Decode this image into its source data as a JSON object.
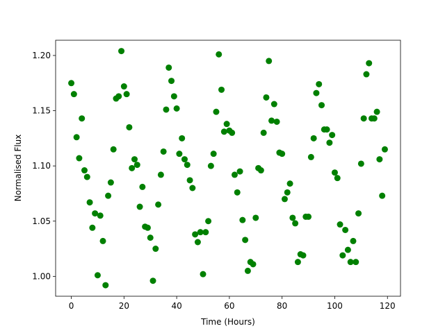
{
  "chart_data": {
    "type": "scatter",
    "x_label": "Time (Hours)",
    "y_label": "Normalised Flux",
    "color": "#008000",
    "x": [
      0,
      1,
      2,
      3,
      4,
      5,
      6,
      7,
      8,
      9,
      10,
      11,
      12,
      13,
      14,
      15,
      16,
      17,
      18,
      19,
      20,
      21,
      22,
      23,
      24,
      25,
      26,
      27,
      28,
      29,
      30,
      31,
      32,
      33,
      34,
      35,
      36,
      37,
      38,
      39,
      40,
      41,
      42,
      43,
      44,
      45,
      46,
      47,
      48,
      49,
      50,
      51,
      52,
      53,
      54,
      55,
      56,
      57,
      58,
      59,
      60,
      61,
      62,
      63,
      64,
      65,
      66,
      67,
      68,
      69,
      70,
      71,
      72,
      73,
      74,
      75,
      76,
      77,
      78,
      79,
      80,
      81,
      82,
      83,
      84,
      85,
      86,
      87,
      88,
      89,
      90,
      91,
      92,
      93,
      94,
      95,
      96,
      97,
      98,
      99,
      100,
      101,
      102,
      103,
      104,
      105,
      106,
      107,
      108,
      109,
      110,
      111,
      112,
      113,
      114,
      115,
      116,
      117,
      118,
      119
    ],
    "values": [
      1.175,
      1.165,
      1.126,
      1.107,
      1.143,
      1.096,
      1.09,
      1.067,
      1.044,
      1.057,
      1.001,
      1.055,
      1.032,
      0.992,
      1.073,
      1.085,
      1.115,
      1.161,
      1.163,
      1.204,
      1.172,
      1.165,
      1.135,
      1.098,
      1.106,
      1.101,
      1.063,
      1.081,
      1.045,
      1.044,
      1.035,
      0.996,
      1.025,
      1.065,
      1.092,
      1.113,
      1.151,
      1.189,
      1.177,
      1.163,
      1.152,
      1.111,
      1.125,
      1.106,
      1.101,
      1.087,
      1.08,
      1.038,
      1.031,
      1.04,
      1.002,
      1.04,
      1.05,
      1.1,
      1.111,
      1.149,
      1.201,
      1.169,
      1.131,
      1.138,
      1.132,
      1.13,
      1.092,
      1.076,
      1.095,
      1.051,
      1.033,
      1.005,
      1.013,
      1.011,
      1.053,
      1.098,
      1.096,
      1.13,
      1.162,
      1.195,
      1.141,
      1.156,
      1.14,
      1.112,
      1.111,
      1.07,
      1.076,
      1.084,
      1.053,
      1.048,
      1.013,
      1.02,
      1.019,
      1.054,
      1.054,
      1.108,
      1.125,
      1.166,
      1.174,
      1.155,
      1.133,
      1.133,
      1.121,
      1.128,
      1.094,
      1.089,
      1.047,
      1.019,
      1.042,
      1.024,
      1.013,
      1.032,
      1.013,
      1.057,
      1.102,
      1.143,
      1.183,
      1.193,
      1.143,
      1.143,
      1.149,
      1.106,
      1.073,
      1.115
    ],
    "xlim": [
      -5.95,
      124.95
    ],
    "ylim": [
      0.982,
      1.2138
    ],
    "xticks": [
      0,
      20,
      40,
      60,
      80,
      100,
      120
    ],
    "yticks": [
      {
        "value": 1.0,
        "label": "1.00"
      },
      {
        "value": 1.05,
        "label": "1.05"
      },
      {
        "value": 1.1,
        "label": "1.10"
      },
      {
        "value": 1.15,
        "label": "1.15"
      },
      {
        "value": 1.2,
        "label": "1.20"
      }
    ]
  }
}
